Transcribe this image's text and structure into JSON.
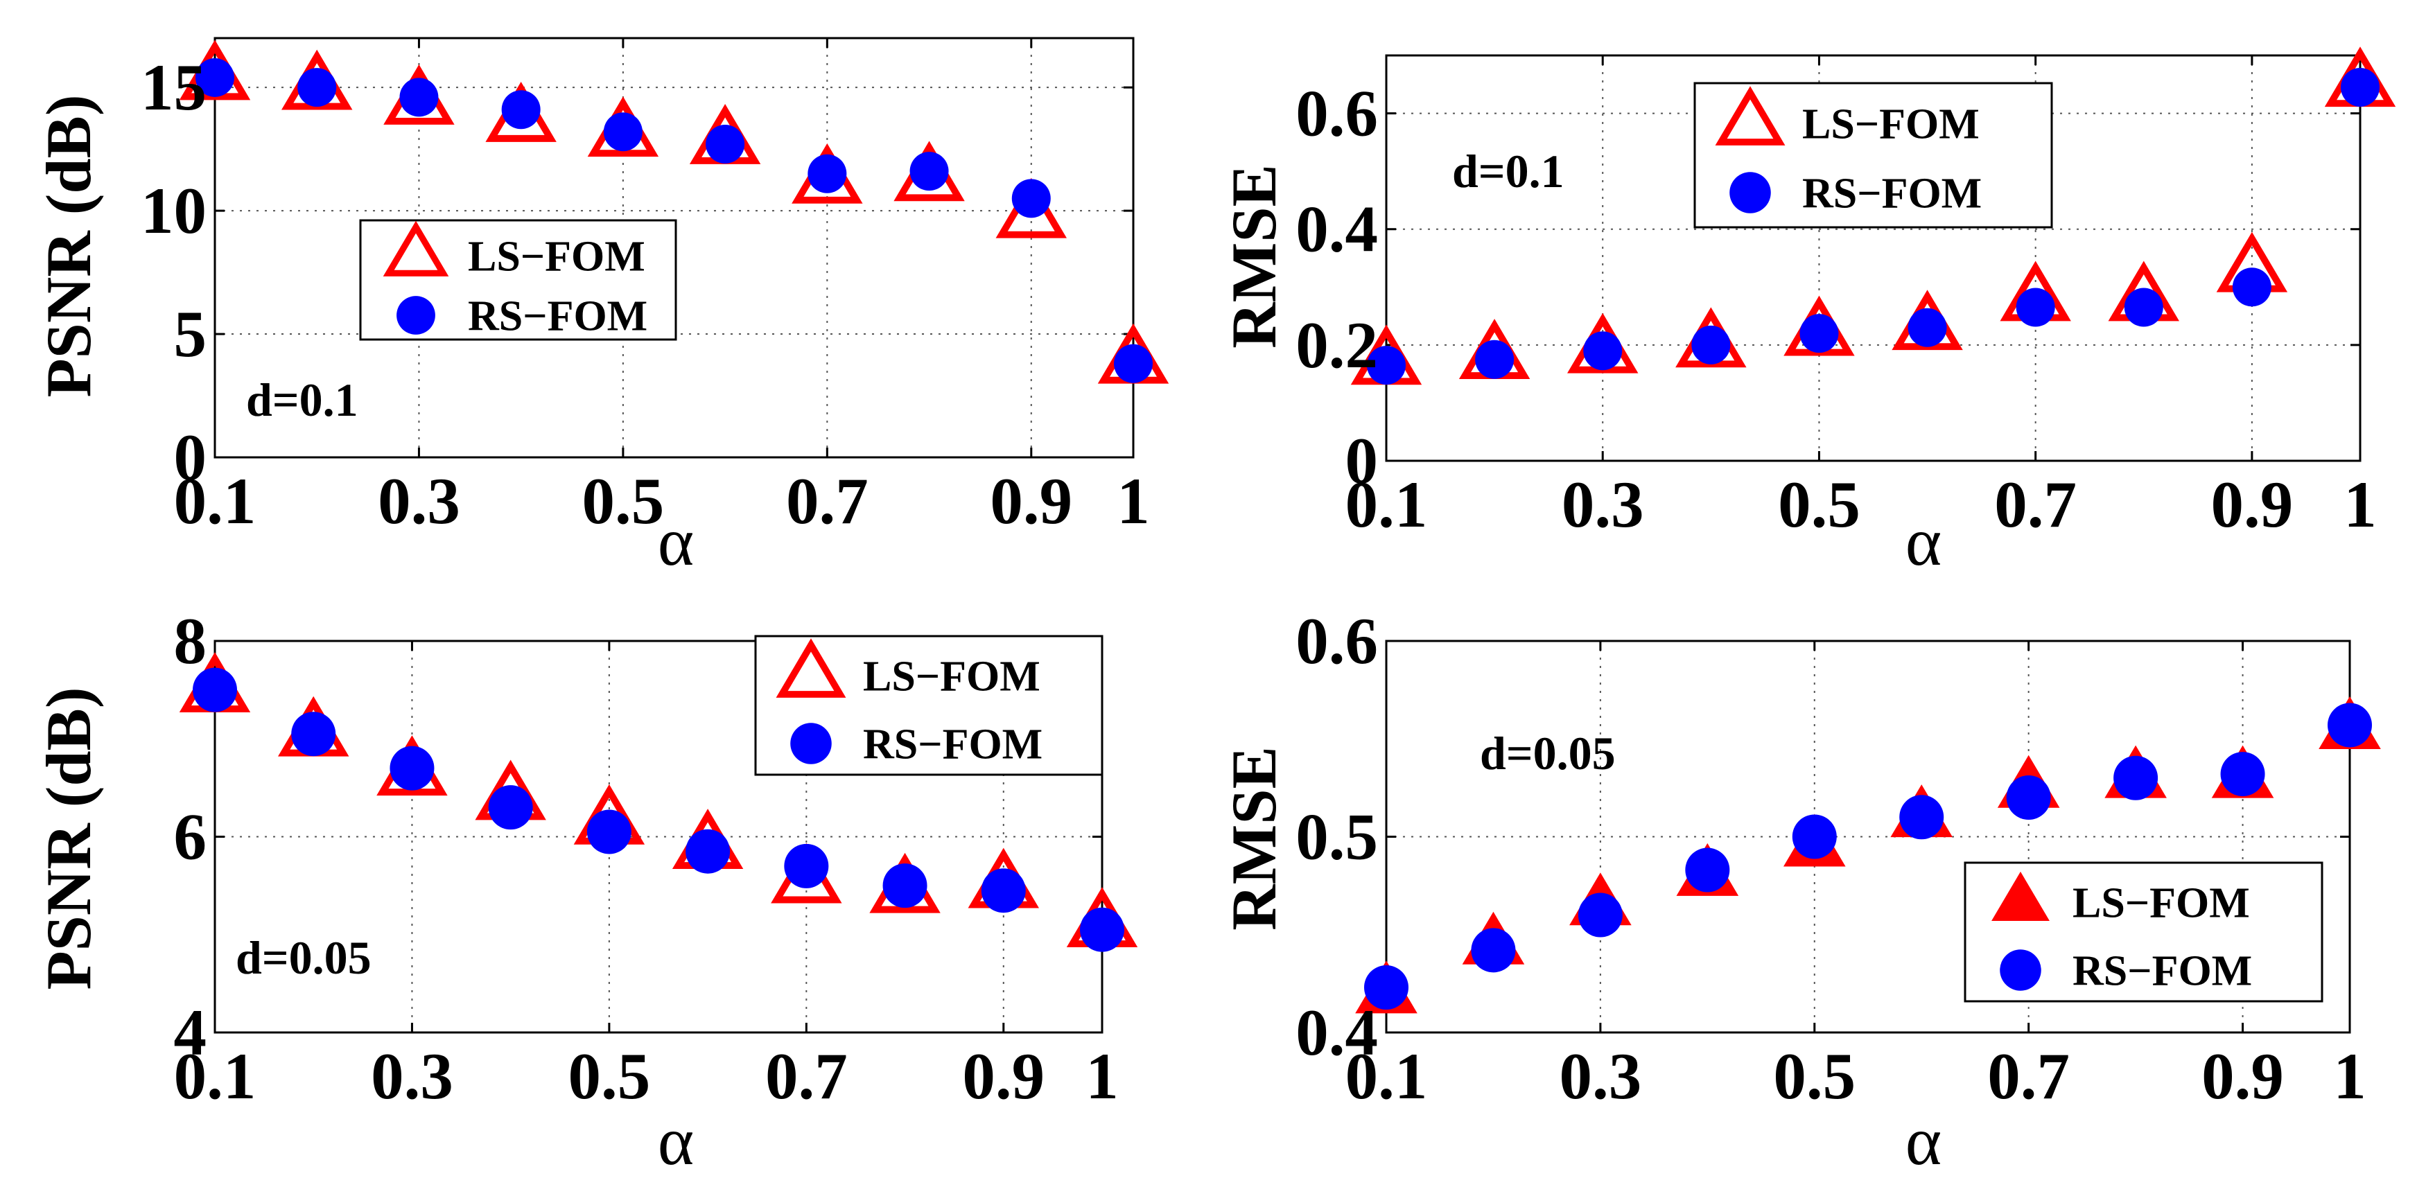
{
  "colors": {
    "ls_fom": "#ff0000",
    "rs_fom": "#0000ff",
    "axis": "#000000",
    "grid": "#555555"
  },
  "chart_data": [
    {
      "type": "scatter",
      "title": "",
      "xlabel": "α",
      "ylabel": "PSNR (dB)",
      "annotation": "d=0.1",
      "x": [
        0.1,
        0.2,
        0.3,
        0.4,
        0.5,
        0.6,
        0.7,
        0.8,
        0.9,
        1
      ],
      "xticks": [
        "0.1",
        "0.3",
        "0.5",
        "0.7",
        "0.9",
        "1"
      ],
      "xtick_values": [
        0.1,
        0.3,
        0.5,
        0.7,
        0.9,
        1
      ],
      "yticks": [
        "0",
        "5",
        "10",
        "15"
      ],
      "ytick_values": [
        0,
        5,
        10,
        15
      ],
      "xlim": [
        0.1,
        1
      ],
      "ylim": [
        0,
        17
      ],
      "legend_position": "center-left",
      "series": [
        {
          "name": "LS−FOM",
          "marker": "triangle-open",
          "values": [
            15.4,
            15.0,
            14.4,
            13.7,
            13.1,
            12.8,
            11.2,
            11.3,
            9.8,
            3.9
          ]
        },
        {
          "name": "RS−FOM",
          "marker": "circle",
          "values": [
            15.4,
            15.0,
            14.6,
            14.1,
            13.2,
            12.7,
            11.5,
            11.6,
            10.5,
            3.8
          ]
        }
      ]
    },
    {
      "type": "scatter",
      "title": "",
      "xlabel": "α",
      "ylabel": "RMSE",
      "annotation": "d=0.1",
      "x": [
        0.1,
        0.2,
        0.3,
        0.4,
        0.5,
        0.6,
        0.7,
        0.8,
        0.9,
        1
      ],
      "xticks": [
        "0.1",
        "0.3",
        "0.5",
        "0.7",
        "0.9",
        "1"
      ],
      "xtick_values": [
        0.1,
        0.3,
        0.5,
        0.7,
        0.9,
        1
      ],
      "yticks": [
        "0",
        "0.2",
        "0.4",
        "0.6"
      ],
      "ytick_values": [
        0,
        0.2,
        0.4,
        0.6
      ],
      "xlim": [
        0.1,
        1
      ],
      "ylim": [
        0,
        0.7
      ],
      "legend_position": "top-center",
      "series": [
        {
          "name": "LS−FOM",
          "marker": "triangle-open",
          "values": [
            0.17,
            0.18,
            0.19,
            0.2,
            0.22,
            0.23,
            0.28,
            0.28,
            0.33,
            0.65
          ]
        },
        {
          "name": "RS−FOM",
          "marker": "circle",
          "values": [
            0.165,
            0.175,
            0.19,
            0.2,
            0.22,
            0.23,
            0.265,
            0.265,
            0.3,
            0.645
          ]
        }
      ]
    },
    {
      "type": "scatter",
      "title": "",
      "xlabel": "α",
      "ylabel": "PSNR (dB)",
      "annotation": "d=0.05",
      "x": [
        0.1,
        0.2,
        0.3,
        0.4,
        0.5,
        0.6,
        0.7,
        0.8,
        0.9,
        1
      ],
      "xticks": [
        "0.1",
        "0.3",
        "0.5",
        "0.7",
        "0.9",
        "1"
      ],
      "xtick_values": [
        0.1,
        0.3,
        0.5,
        0.7,
        0.9,
        1
      ],
      "yticks": [
        "4",
        "6",
        "8"
      ],
      "ytick_values": [
        4,
        6,
        8
      ],
      "xlim": [
        0.1,
        1
      ],
      "ylim": [
        4,
        8
      ],
      "legend_position": "top-right",
      "series": [
        {
          "name": "LS−FOM",
          "marker": "triangle-open",
          "values": [
            7.5,
            7.05,
            6.65,
            6.4,
            6.15,
            5.9,
            5.55,
            5.45,
            5.5,
            5.1
          ]
        },
        {
          "name": "RS−FOM",
          "marker": "circle",
          "values": [
            7.5,
            7.05,
            6.7,
            6.3,
            6.05,
            5.85,
            5.7,
            5.5,
            5.45,
            5.05
          ]
        }
      ]
    },
    {
      "type": "scatter",
      "title": "",
      "xlabel": "α",
      "ylabel": "RMSE",
      "annotation": "d=0.05",
      "x": [
        0.1,
        0.2,
        0.3,
        0.4,
        0.5,
        0.6,
        0.7,
        0.8,
        0.9,
        1
      ],
      "xticks": [
        "0.1",
        "0.3",
        "0.5",
        "0.7",
        "0.9",
        "1"
      ],
      "xtick_values": [
        0.1,
        0.3,
        0.5,
        0.7,
        0.9,
        1
      ],
      "yticks": [
        "0.4",
        "0.5",
        "0.6"
      ],
      "ytick_values": [
        0.4,
        0.5,
        0.6
      ],
      "xlim": [
        0.1,
        1
      ],
      "ylim": [
        0.4,
        0.6
      ],
      "legend_position": "bottom-right",
      "series": [
        {
          "name": "LS−FOM",
          "marker": "triangle-filled",
          "values": [
            0.42,
            0.445,
            0.465,
            0.48,
            0.495,
            0.51,
            0.525,
            0.53,
            0.53,
            0.555
          ]
        },
        {
          "name": "RS−FOM",
          "marker": "circle",
          "values": [
            0.423,
            0.442,
            0.46,
            0.483,
            0.5,
            0.51,
            0.52,
            0.53,
            0.532,
            0.557
          ]
        }
      ]
    }
  ]
}
